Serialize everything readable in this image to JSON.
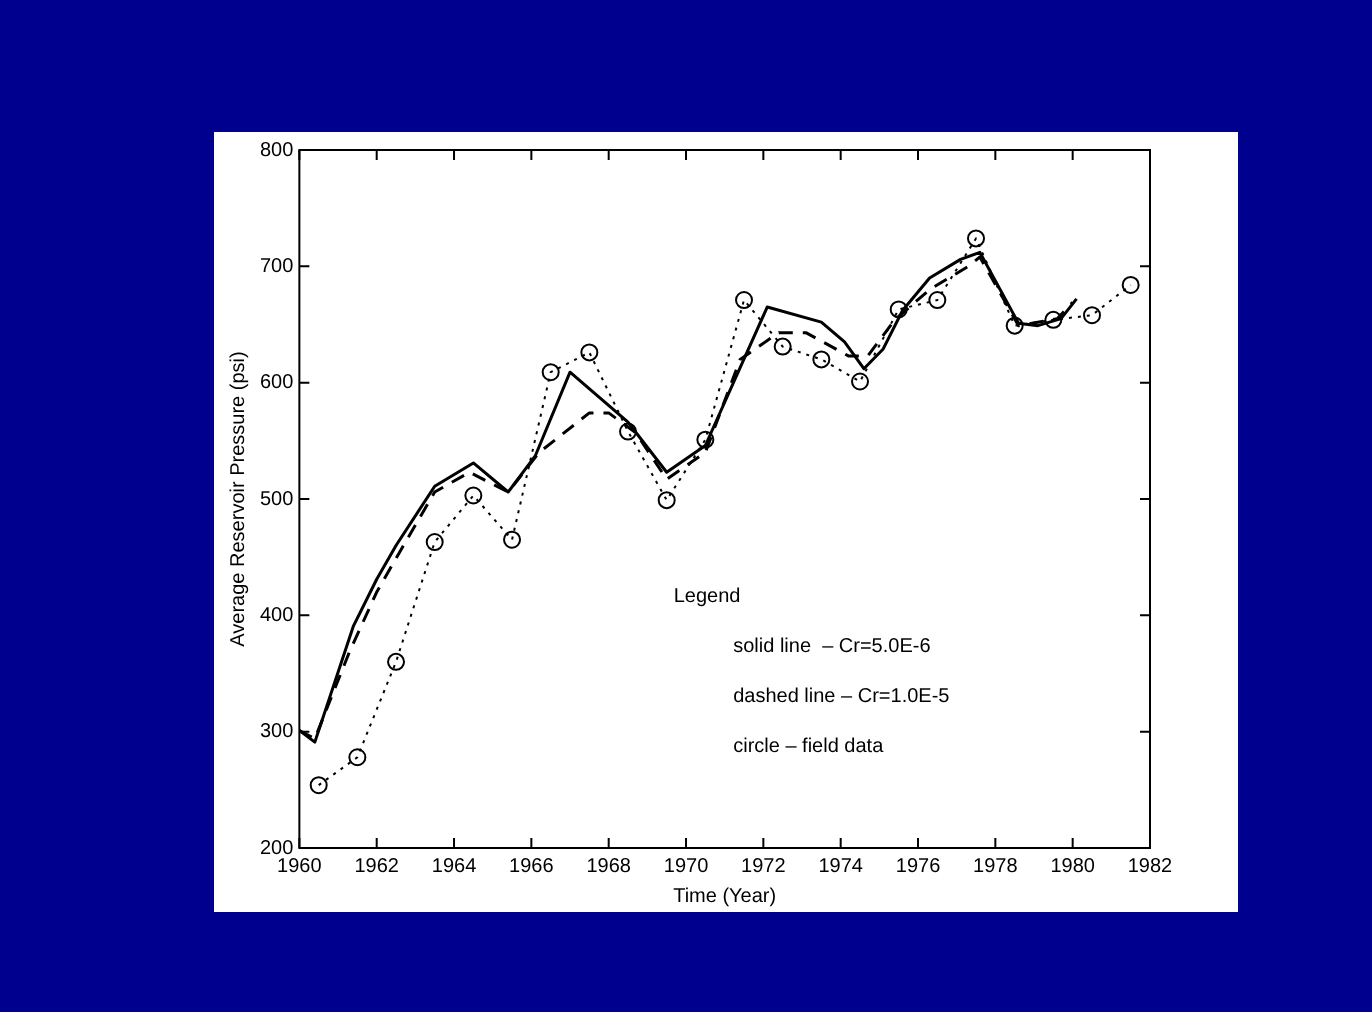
{
  "chart_data": {
    "type": "line",
    "xlabel": "Time (Year)",
    "ylabel": "Average Reservoir Pressure (psi)",
    "xlim": [
      1960,
      1982
    ],
    "xticks": [
      1960,
      1962,
      1964,
      1966,
      1968,
      1970,
      1972,
      1974,
      1976,
      1978,
      1980,
      1982
    ],
    "ylim": [
      200,
      800
    ],
    "yticks": [
      200,
      300,
      400,
      500,
      600,
      700,
      800
    ],
    "grid": false,
    "legend": false,
    "annotations": [
      "Legend",
      "solid line  – Cr=5.0E-6",
      "dashed line – Cr=1.0E-5",
      "circle – field data"
    ],
    "series": [
      {
        "color": "#000000",
        "line_style": "solid",
        "marker": "none",
        "x": [
          1960,
          1960.4,
          1961.4,
          1962,
          1962.5,
          1963.5,
          1964.5,
          1965.4,
          1966.1,
          1967,
          1968.5,
          1969.5,
          1970.5,
          1972.1,
          1973.5,
          1974.1,
          1974.6,
          1975.1,
          1975.6,
          1976.3,
          1977.1,
          1977.6,
          1978.6,
          1979.1,
          1979.7,
          1980.1
        ],
        "values": [
          301,
          291,
          391,
          431,
          460,
          511,
          531,
          506,
          537,
          609,
          566,
          523,
          546,
          665,
          652,
          635,
          612,
          629,
          662,
          690,
          706,
          712,
          651,
          649,
          655,
          672
        ]
      },
      {
        "color": "#000000",
        "line_style": "dashed",
        "marker": "none",
        "x": [
          1960,
          1960.4,
          1961.3,
          1962,
          1962.5,
          1963.5,
          1964.4,
          1965.4,
          1966.2,
          1967.5,
          1968,
          1968.7,
          1969.5,
          1970.5,
          1971.4,
          1972.4,
          1973.1,
          1974.2,
          1974.7,
          1975.4,
          1976.3,
          1977.3,
          1977.6,
          1978.6,
          1979.6,
          1980
        ],
        "values": [
          301,
          294,
          369,
          420,
          449,
          506,
          523,
          506,
          540,
          574,
          574,
          557,
          517,
          540,
          620,
          643,
          643,
          623,
          623,
          654,
          680,
          700,
          708,
          649,
          655,
          669
        ]
      },
      {
        "color": "#000000",
        "line_style": "dotted",
        "marker": "circle",
        "x": [
          1960.5,
          1961.5,
          1962.5,
          1963.5,
          1964.5,
          1965.5,
          1966.5,
          1967.5,
          1968.5,
          1969.5,
          1970.5,
          1971.5,
          1972.5,
          1973.5,
          1974.5,
          1975.5,
          1976.5,
          1977.5,
          1978.5,
          1979.5,
          1980.5,
          1981.5
        ],
        "values": [
          254,
          278,
          360,
          463,
          503,
          465,
          609,
          626,
          558,
          499,
          551,
          671,
          631,
          620,
          601,
          663,
          671,
          724,
          649,
          654,
          658,
          684
        ]
      }
    ]
  }
}
